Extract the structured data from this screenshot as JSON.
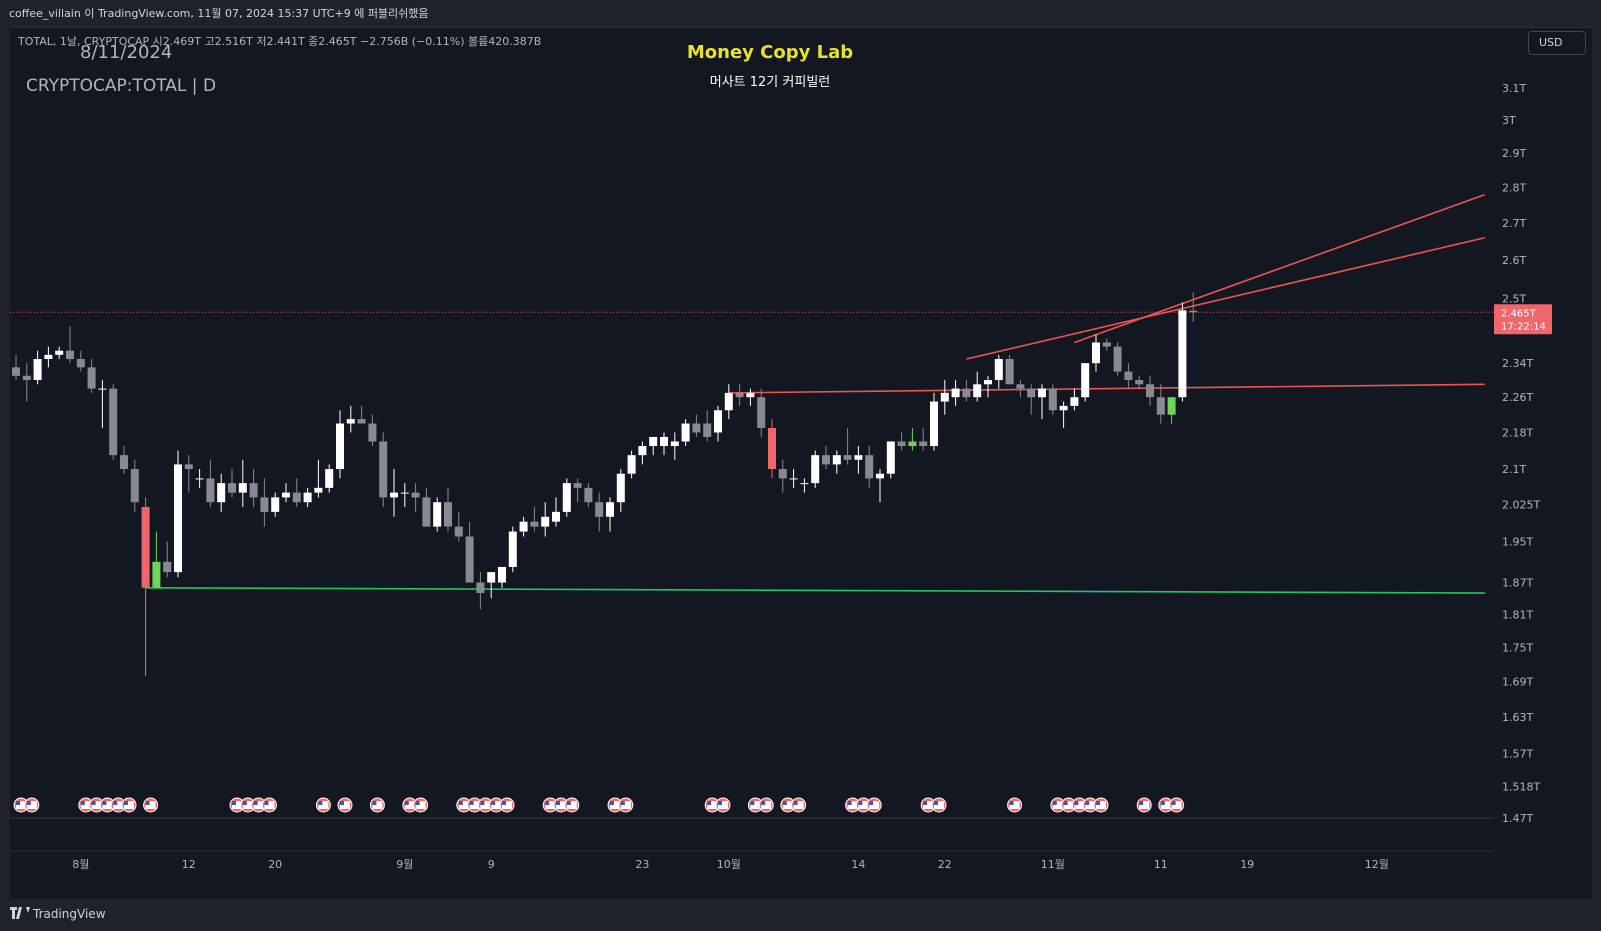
{
  "header": {
    "caption": "coffee_villain 이 TradingView.com, 11월 07, 2024 15:37 UTC+9 에 퍼블리쉬했음"
  },
  "legend": {
    "ohlc_line": "TOTAL, 1날, CRYPTOCAP  시2.469T  고2.516T  저2.441T  종2.465T  −2.756B (−0.11%)  볼륨420.387B",
    "date": "8/11/2024",
    "symbol": "CRYPTOCAP:TOTAL | D"
  },
  "watermark": {
    "title": "Money Copy Lab",
    "subtitle": "머사트 12기 커피빌런"
  },
  "currency_button": "USD",
  "footer": {
    "brand": "TradingView",
    "logo_icon": "tradingview-logo-icon"
  },
  "colors": {
    "background": "#131722",
    "up_candle": "#ffffff",
    "down_candle": "#888a92",
    "highlight_up": "#6dd45a",
    "highlight_down": "#f0676b",
    "trendline_red": "#ef5350",
    "trendline_green": "#22c55e",
    "price_label_bg": "#f0676b",
    "title_color": "#e8e22a"
  },
  "chart_data": {
    "type": "candlestick",
    "symbol": "CRYPTOCAP:TOTAL",
    "interval": "1D",
    "y_scale": "log",
    "yticks": [
      "3.1T",
      "3T",
      "2.9T",
      "2.8T",
      "2.7T",
      "2.6T",
      "2.5T",
      "2.34T",
      "2.26T",
      "2.18T",
      "2.1T",
      "2.025T",
      "1.95T",
      "1.87T",
      "1.81T",
      "1.75T",
      "1.69T",
      "1.63T",
      "1.57T",
      "1.518T",
      "1.47T"
    ],
    "ytick_values": [
      3.1,
      3.0,
      2.9,
      2.8,
      2.7,
      2.6,
      2.5,
      2.34,
      2.26,
      2.18,
      2.1,
      2.025,
      1.95,
      1.87,
      1.81,
      1.75,
      1.69,
      1.63,
      1.57,
      1.518,
      1.47
    ],
    "ylim": [
      1.47,
      3.1
    ],
    "xticks": [
      "8월",
      "12",
      "20",
      "9월",
      "9",
      "23",
      "10월",
      "14",
      "22",
      "11월",
      "11",
      "19",
      "12월"
    ],
    "xtick_index": [
      6,
      16,
      24,
      36,
      44,
      58,
      66,
      78,
      86,
      96,
      106,
      114,
      126
    ],
    "current_price": {
      "label": "2.465T",
      "value": 2.465,
      "countdown": "17:22:14"
    },
    "candles": [
      [
        2.33,
        2.36,
        2.3,
        2.31
      ],
      [
        2.31,
        2.34,
        2.25,
        2.3
      ],
      [
        2.3,
        2.37,
        2.29,
        2.35
      ],
      [
        2.35,
        2.38,
        2.33,
        2.36
      ],
      [
        2.36,
        2.38,
        2.35,
        2.37
      ],
      [
        2.37,
        2.43,
        2.34,
        2.35
      ],
      [
        2.35,
        2.37,
        2.32,
        2.33
      ],
      [
        2.33,
        2.35,
        2.27,
        2.28
      ],
      [
        2.28,
        2.3,
        2.19,
        2.28
      ],
      [
        2.28,
        2.29,
        2.12,
        2.13
      ],
      [
        2.13,
        2.15,
        2.09,
        2.1
      ],
      [
        2.1,
        2.12,
        2.01,
        2.03
      ],
      [
        2.02,
        2.04,
        1.7,
        1.86
      ],
      [
        1.86,
        1.97,
        1.86,
        1.91
      ],
      [
        1.91,
        1.95,
        1.88,
        1.89
      ],
      [
        1.89,
        2.14,
        1.88,
        2.11
      ],
      [
        2.11,
        2.13,
        2.05,
        2.1
      ],
      [
        2.08,
        2.1,
        2.06,
        2.08
      ],
      [
        2.08,
        2.12,
        2.02,
        2.03
      ],
      [
        2.03,
        2.09,
        2.01,
        2.07
      ],
      [
        2.07,
        2.1,
        2.04,
        2.05
      ],
      [
        2.05,
        2.12,
        2.02,
        2.07
      ],
      [
        2.07,
        2.1,
        2.02,
        2.04
      ],
      [
        2.04,
        2.08,
        1.98,
        2.01
      ],
      [
        2.01,
        2.05,
        2.0,
        2.04
      ],
      [
        2.04,
        2.07,
        2.03,
        2.05
      ],
      [
        2.05,
        2.08,
        2.02,
        2.03
      ],
      [
        2.03,
        2.06,
        2.02,
        2.05
      ],
      [
        2.05,
        2.12,
        2.04,
        2.06
      ],
      [
        2.06,
        2.11,
        2.05,
        2.1
      ],
      [
        2.1,
        2.23,
        2.08,
        2.2
      ],
      [
        2.2,
        2.24,
        2.18,
        2.21
      ],
      [
        2.21,
        2.24,
        2.2,
        2.2
      ],
      [
        2.2,
        2.22,
        2.15,
        2.16
      ],
      [
        2.16,
        2.18,
        2.02,
        2.04
      ],
      [
        2.04,
        2.1,
        2.0,
        2.05
      ],
      [
        2.05,
        2.07,
        2.02,
        2.05
      ],
      [
        2.05,
        2.07,
        2.01,
        2.04
      ],
      [
        2.04,
        2.06,
        1.98,
        1.98
      ],
      [
        1.98,
        2.04,
        1.97,
        2.03
      ],
      [
        2.03,
        2.06,
        1.97,
        1.98
      ],
      [
        1.98,
        2.01,
        1.95,
        1.96
      ],
      [
        1.96,
        1.99,
        1.87,
        1.87
      ],
      [
        1.87,
        1.89,
        1.82,
        1.85
      ],
      [
        1.87,
        1.89,
        1.84,
        1.89
      ],
      [
        1.87,
        1.9,
        1.86,
        1.9
      ],
      [
        1.9,
        1.98,
        1.89,
        1.97
      ],
      [
        1.97,
        2.0,
        1.96,
        1.99
      ],
      [
        1.99,
        2.02,
        1.97,
        1.98
      ],
      [
        1.98,
        2.03,
        1.96,
        2.0
      ],
      [
        1.99,
        2.04,
        1.98,
        2.01
      ],
      [
        2.01,
        2.08,
        2.0,
        2.07
      ],
      [
        2.07,
        2.08,
        2.03,
        2.06
      ],
      [
        2.06,
        2.07,
        2.02,
        2.03
      ],
      [
        2.03,
        2.05,
        1.97,
        2.0
      ],
      [
        2.0,
        2.04,
        1.97,
        2.03
      ],
      [
        2.03,
        2.1,
        2.01,
        2.09
      ],
      [
        2.09,
        2.14,
        2.08,
        2.13
      ],
      [
        2.13,
        2.16,
        2.11,
        2.15
      ],
      [
        2.15,
        2.17,
        2.13,
        2.17
      ],
      [
        2.15,
        2.18,
        2.13,
        2.17
      ],
      [
        2.15,
        2.18,
        2.12,
        2.16
      ],
      [
        2.16,
        2.21,
        2.15,
        2.2
      ],
      [
        2.2,
        2.22,
        2.17,
        2.18
      ],
      [
        2.2,
        2.23,
        2.16,
        2.17
      ],
      [
        2.18,
        2.24,
        2.16,
        2.23
      ],
      [
        2.23,
        2.29,
        2.21,
        2.27
      ],
      [
        2.27,
        2.29,
        2.24,
        2.26
      ],
      [
        2.26,
        2.28,
        2.24,
        2.27
      ],
      [
        2.26,
        2.28,
        2.17,
        2.19
      ],
      [
        2.19,
        2.21,
        2.08,
        2.1
      ],
      [
        2.1,
        2.12,
        2.05,
        2.08
      ],
      [
        2.08,
        2.1,
        2.06,
        2.08
      ],
      [
        2.07,
        2.08,
        2.05,
        2.07
      ],
      [
        2.07,
        2.14,
        2.06,
        2.13
      ],
      [
        2.13,
        2.15,
        2.1,
        2.11
      ],
      [
        2.11,
        2.14,
        2.09,
        2.13
      ],
      [
        2.13,
        2.19,
        2.11,
        2.12
      ],
      [
        2.12,
        2.15,
        2.09,
        2.13
      ],
      [
        2.13,
        2.15,
        2.06,
        2.08
      ],
      [
        2.08,
        2.1,
        2.03,
        2.09
      ],
      [
        2.09,
        2.16,
        2.08,
        2.16
      ],
      [
        2.16,
        2.18,
        2.14,
        2.15
      ],
      [
        2.15,
        2.19,
        2.14,
        2.16
      ],
      [
        2.16,
        2.19,
        2.14,
        2.15
      ],
      [
        2.15,
        2.27,
        2.14,
        2.25
      ],
      [
        2.25,
        2.3,
        2.22,
        2.27
      ],
      [
        2.26,
        2.3,
        2.24,
        2.28
      ],
      [
        2.28,
        2.3,
        2.25,
        2.26
      ],
      [
        2.26,
        2.32,
        2.25,
        2.29
      ],
      [
        2.29,
        2.31,
        2.26,
        2.3
      ],
      [
        2.3,
        2.36,
        2.28,
        2.35
      ],
      [
        2.35,
        2.36,
        2.29,
        2.29
      ],
      [
        2.29,
        2.3,
        2.26,
        2.28
      ],
      [
        2.28,
        2.29,
        2.22,
        2.26
      ],
      [
        2.26,
        2.29,
        2.21,
        2.28
      ],
      [
        2.28,
        2.29,
        2.22,
        2.23
      ],
      [
        2.23,
        2.25,
        2.19,
        2.24
      ],
      [
        2.24,
        2.28,
        2.23,
        2.26
      ],
      [
        2.26,
        2.34,
        2.25,
        2.34
      ],
      [
        2.34,
        2.41,
        2.32,
        2.39
      ],
      [
        2.39,
        2.4,
        2.37,
        2.38
      ],
      [
        2.38,
        2.39,
        2.31,
        2.32
      ],
      [
        2.32,
        2.34,
        2.28,
        2.3
      ],
      [
        2.3,
        2.31,
        2.28,
        2.29
      ],
      [
        2.29,
        2.31,
        2.24,
        2.26
      ],
      [
        2.26,
        2.29,
        2.2,
        2.22
      ],
      [
        2.22,
        2.26,
        2.2,
        2.26
      ],
      [
        2.26,
        2.49,
        2.25,
        2.47
      ],
      [
        2.469,
        2.516,
        2.441,
        2.465
      ]
    ],
    "highlighted_candles": [
      {
        "index": 12,
        "color": "red"
      },
      {
        "index": 13,
        "color": "green"
      },
      {
        "index": 70,
        "color": "red"
      },
      {
        "index": 83,
        "color": "green"
      },
      {
        "index": 107,
        "color": "green"
      }
    ],
    "trendlines": [
      {
        "color": "green",
        "from": [
          12,
          1.86
        ],
        "to": [
          136,
          1.85
        ]
      },
      {
        "color": "red",
        "from": [
          66,
          2.27
        ],
        "to": [
          136,
          2.29
        ]
      },
      {
        "color": "red",
        "from": [
          88,
          2.35
        ],
        "to": [
          136,
          2.66
        ]
      },
      {
        "color": "red",
        "from": [
          98,
          2.39
        ],
        "to": [
          136,
          2.78
        ]
      }
    ],
    "event_markers_index": [
      0,
      1,
      6,
      7,
      8,
      9,
      10,
      12,
      20,
      21,
      22,
      23,
      28,
      30,
      33,
      36,
      37,
      41,
      42,
      43,
      44,
      45,
      49,
      50,
      51,
      55,
      56,
      64,
      65,
      68,
      69,
      71,
      72,
      77,
      78,
      79,
      84,
      85,
      92,
      96,
      97,
      98,
      99,
      100,
      104,
      106,
      107
    ]
  }
}
